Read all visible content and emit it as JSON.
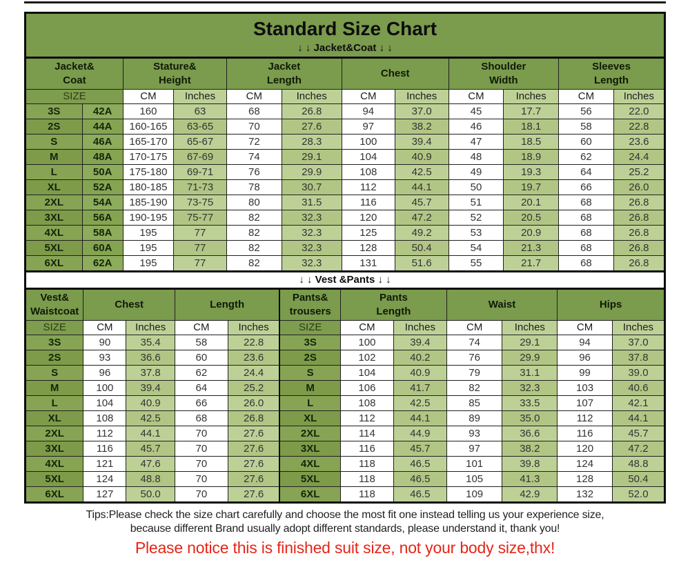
{
  "page": {
    "title": "Standard Size Chart",
    "jacket_section_label": "↓ ↓  Jacket&Coat ↓ ↓",
    "vest_section_label": "↓ ↓  Vest &Pants ↓ ↓",
    "tips_line1": "Tips:Please check the size chart carefully and choose the most fit one instead telling us your experience size,",
    "tips_line2": "because different Brand usually adopt different standards, please understand it, thank you!",
    "notice": "Please notice this is finished suit size, not your body size,thx!"
  },
  "colors": {
    "header_green": "#7b9b4d",
    "size_cell_green": "#86a453",
    "inches_cell_green": "#bdd197",
    "cm_cell_white": "#ffffff",
    "notice_red": "#e62517",
    "border_black": "#0a0a0a"
  },
  "jacket_table": {
    "groups": [
      {
        "label": "Jacket&\nCoat",
        "span": 2
      },
      {
        "label": "Stature&\nHeight",
        "span": 2
      },
      {
        "label": "Jacket\nLength",
        "span": 2
      },
      {
        "label": "Chest",
        "span": 2
      },
      {
        "label": "Shoulder\nWidth",
        "span": 2
      },
      {
        "label": "Sleeves\nLength",
        "span": 2
      }
    ],
    "subheader": [
      {
        "label": "SIZE",
        "span": 2,
        "type": "size"
      },
      {
        "label": "CM",
        "span": 1,
        "type": "cm"
      },
      {
        "label": "Inches",
        "span": 1,
        "type": "in"
      },
      {
        "label": "CM",
        "span": 1,
        "type": "cm"
      },
      {
        "label": "Inches",
        "span": 1,
        "type": "in"
      },
      {
        "label": "CM",
        "span": 1,
        "type": "cm"
      },
      {
        "label": "Inches",
        "span": 1,
        "type": "in"
      },
      {
        "label": "CM",
        "span": 1,
        "type": "cm"
      },
      {
        "label": "Inches",
        "span": 1,
        "type": "in"
      },
      {
        "label": "CM",
        "span": 1,
        "type": "cm"
      },
      {
        "label": "Inches",
        "span": 1,
        "type": "in"
      }
    ],
    "col_types": [
      "size",
      "size2",
      "cm",
      "in",
      "cm",
      "in",
      "cm",
      "in",
      "cm",
      "in",
      "cm",
      "in"
    ],
    "rows": [
      [
        "3S",
        "42A",
        "160",
        "63",
        "68",
        "26.8",
        "94",
        "37.0",
        "45",
        "17.7",
        "56",
        "22.0"
      ],
      [
        "2S",
        "44A",
        "160-165",
        "63-65",
        "70",
        "27.6",
        "97",
        "38.2",
        "46",
        "18.1",
        "58",
        "22.8"
      ],
      [
        "S",
        "46A",
        "165-170",
        "65-67",
        "72",
        "28.3",
        "100",
        "39.4",
        "47",
        "18.5",
        "60",
        "23.6"
      ],
      [
        "M",
        "48A",
        "170-175",
        "67-69",
        "74",
        "29.1",
        "104",
        "40.9",
        "48",
        "18.9",
        "62",
        "24.4"
      ],
      [
        "L",
        "50A",
        "175-180",
        "69-71",
        "76",
        "29.9",
        "108",
        "42.5",
        "49",
        "19.3",
        "64",
        "25.2"
      ],
      [
        "XL",
        "52A",
        "180-185",
        "71-73",
        "78",
        "30.7",
        "112",
        "44.1",
        "50",
        "19.7",
        "66",
        "26.0"
      ],
      [
        "2XL",
        "54A",
        "185-190",
        "73-75",
        "80",
        "31.5",
        "116",
        "45.7",
        "51",
        "20.1",
        "68",
        "26.8"
      ],
      [
        "3XL",
        "56A",
        "190-195",
        "75-77",
        "82",
        "32.3",
        "120",
        "47.2",
        "52",
        "20.5",
        "68",
        "26.8"
      ],
      [
        "4XL",
        "58A",
        "195",
        "77",
        "82",
        "32.3",
        "125",
        "49.2",
        "53",
        "20.9",
        "68",
        "26.8"
      ],
      [
        "5XL",
        "60A",
        "195",
        "77",
        "82",
        "32.3",
        "128",
        "50.4",
        "54",
        "21.3",
        "68",
        "26.8"
      ],
      [
        "6XL",
        "62A",
        "195",
        "77",
        "82",
        "32.3",
        "131",
        "51.6",
        "55",
        "21.7",
        "68",
        "26.8"
      ]
    ]
  },
  "vest_table": {
    "groups": [
      {
        "label": "Vest&\nWaistcoat",
        "span": 1
      },
      {
        "label": "Chest",
        "span": 2
      },
      {
        "label": "Length",
        "span": 2
      },
      {
        "label": "Pants&\ntrousers",
        "span": 1,
        "sep": true
      },
      {
        "label": "Pants\nLength",
        "span": 2
      },
      {
        "label": "Waist",
        "span": 2
      },
      {
        "label": "Hips",
        "span": 2
      }
    ],
    "subheader": [
      {
        "label": "SIZE",
        "span": 1,
        "type": "size"
      },
      {
        "label": "CM",
        "span": 1,
        "type": "cm"
      },
      {
        "label": "Inches",
        "span": 1,
        "type": "in"
      },
      {
        "label": "CM",
        "span": 1,
        "type": "cm"
      },
      {
        "label": "Inches",
        "span": 1,
        "type": "in"
      },
      {
        "label": "SIZE",
        "span": 1,
        "type": "size",
        "sep": true
      },
      {
        "label": "CM",
        "span": 1,
        "type": "cm"
      },
      {
        "label": "Inches",
        "span": 1,
        "type": "in"
      },
      {
        "label": "CM",
        "span": 1,
        "type": "cm"
      },
      {
        "label": "Inches",
        "span": 1,
        "type": "in"
      },
      {
        "label": "CM",
        "span": 1,
        "type": "cm"
      },
      {
        "label": "Inches",
        "span": 1,
        "type": "in"
      }
    ],
    "col_types": [
      "size",
      "cm",
      "in",
      "cm",
      "in",
      "size",
      "cm",
      "in",
      "cm",
      "in",
      "cm",
      "in"
    ],
    "sep_cols": [
      5
    ],
    "rows": [
      [
        "3S",
        "90",
        "35.4",
        "58",
        "22.8",
        "3S",
        "100",
        "39.4",
        "74",
        "29.1",
        "94",
        "37.0"
      ],
      [
        "2S",
        "93",
        "36.6",
        "60",
        "23.6",
        "2S",
        "102",
        "40.2",
        "76",
        "29.9",
        "96",
        "37.8"
      ],
      [
        "S",
        "96",
        "37.8",
        "62",
        "24.4",
        "S",
        "104",
        "40.9",
        "79",
        "31.1",
        "99",
        "39.0"
      ],
      [
        "M",
        "100",
        "39.4",
        "64",
        "25.2",
        "M",
        "106",
        "41.7",
        "82",
        "32.3",
        "103",
        "40.6"
      ],
      [
        "L",
        "104",
        "40.9",
        "66",
        "26.0",
        "L",
        "108",
        "42.5",
        "85",
        "33.5",
        "107",
        "42.1"
      ],
      [
        "XL",
        "108",
        "42.5",
        "68",
        "26.8",
        "XL",
        "112",
        "44.1",
        "89",
        "35.0",
        "112",
        "44.1"
      ],
      [
        "2XL",
        "112",
        "44.1",
        "70",
        "27.6",
        "2XL",
        "114",
        "44.9",
        "93",
        "36.6",
        "116",
        "45.7"
      ],
      [
        "3XL",
        "116",
        "45.7",
        "70",
        "27.6",
        "3XL",
        "116",
        "45.7",
        "97",
        "38.2",
        "120",
        "47.2"
      ],
      [
        "4XL",
        "121",
        "47.6",
        "70",
        "27.6",
        "4XL",
        "118",
        "46.5",
        "101",
        "39.8",
        "124",
        "48.8"
      ],
      [
        "5XL",
        "124",
        "48.8",
        "70",
        "27.6",
        "5XL",
        "118",
        "46.5",
        "105",
        "41.3",
        "128",
        "50.4"
      ],
      [
        "6XL",
        "127",
        "50.0",
        "70",
        "27.6",
        "6XL",
        "118",
        "46.5",
        "109",
        "42.9",
        "132",
        "52.0"
      ]
    ]
  }
}
